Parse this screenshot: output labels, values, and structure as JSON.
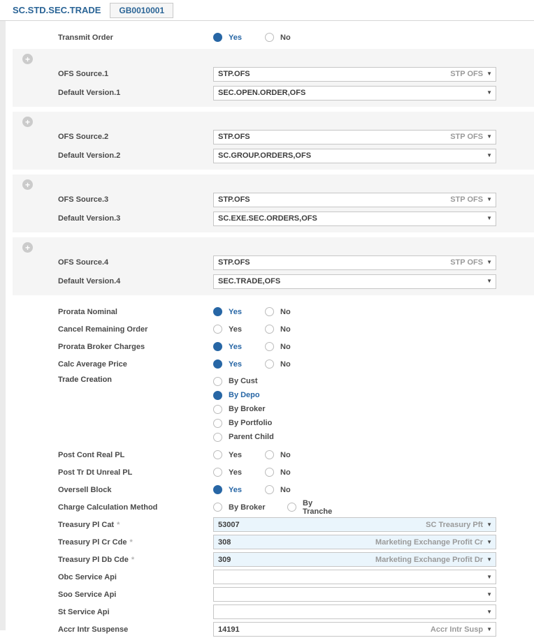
{
  "header": {
    "title": "SC.STD.SEC.TRADE",
    "record_id": "GB0010001"
  },
  "common": {
    "yes": "Yes",
    "no": "No",
    "required_marker": "*",
    "expand_icon": "+",
    "dropdown_arrow": "▼"
  },
  "transmit_order": {
    "label": "Transmit Order",
    "selected": "Yes"
  },
  "groups": [
    {
      "source_label": "OFS Source.1",
      "source_value": "STP.OFS",
      "source_enrichment": "STP OFS",
      "version_label": "Default Version.1",
      "version_value": "SEC.OPEN.ORDER,OFS"
    },
    {
      "source_label": "OFS Source.2",
      "source_value": "STP.OFS",
      "source_enrichment": "STP OFS",
      "version_label": "Default Version.2",
      "version_value": "SC.GROUP.ORDERS,OFS"
    },
    {
      "source_label": "OFS Source.3",
      "source_value": "STP.OFS",
      "source_enrichment": "STP OFS",
      "version_label": "Default Version.3",
      "version_value": "SC.EXE.SEC.ORDERS,OFS"
    },
    {
      "source_label": "OFS Source.4",
      "source_value": "STP.OFS",
      "source_enrichment": "STP OFS",
      "version_label": "Default Version.4",
      "version_value": "SEC.TRADE,OFS"
    }
  ],
  "yes_no_rows": [
    {
      "label": "Prorata Nominal",
      "selected": "Yes"
    },
    {
      "label": "Cancel Remaining Order",
      "selected": ""
    },
    {
      "label": "Prorata Broker Charges",
      "selected": "Yes"
    },
    {
      "label": "Calc Average Price",
      "selected": "Yes"
    }
  ],
  "trade_creation": {
    "label": "Trade Creation",
    "selected": "By Depo",
    "options": [
      "By Cust",
      "By Depo",
      "By Broker",
      "By Portfolio",
      "Parent Child"
    ]
  },
  "yes_no_rows_2": [
    {
      "label": "Post Cont Real PL",
      "selected": ""
    },
    {
      "label": "Post Tr Dt Unreal PL",
      "selected": ""
    },
    {
      "label": "Oversell Block",
      "selected": "Yes"
    }
  ],
  "charge_calc_method": {
    "label": "Charge Calculation Method",
    "selected": "",
    "options": [
      "By Broker",
      "By Tranche"
    ]
  },
  "fields": [
    {
      "label": "Treasury Pl Cat",
      "required": true,
      "value": "53007",
      "enrichment": "SC Treasury Pft"
    },
    {
      "label": "Treasury Pl Cr Cde",
      "required": true,
      "value": "308",
      "enrichment": "Marketing Exchange Profit Cr"
    },
    {
      "label": "Treasury Pl Db Cde",
      "required": true,
      "value": "309",
      "enrichment": "Marketing Exchange Profit Dr"
    },
    {
      "label": "Obc Service Api",
      "required": false,
      "value": "",
      "enrichment": ""
    },
    {
      "label": "Soo Service Api",
      "required": false,
      "value": "",
      "enrichment": ""
    },
    {
      "label": "St Service Api",
      "required": false,
      "value": "",
      "enrichment": ""
    },
    {
      "label": "Accr Intr Suspense",
      "required": false,
      "value": "14191",
      "enrichment": "Accr Intr Susp"
    }
  ],
  "colors": {
    "accent_blue": "#2a6496",
    "radio_selected": "#2766a5",
    "group_bg": "#f5f5f5",
    "highlight_bg": "#eaf5fc",
    "left_strip": "#ebebeb"
  }
}
